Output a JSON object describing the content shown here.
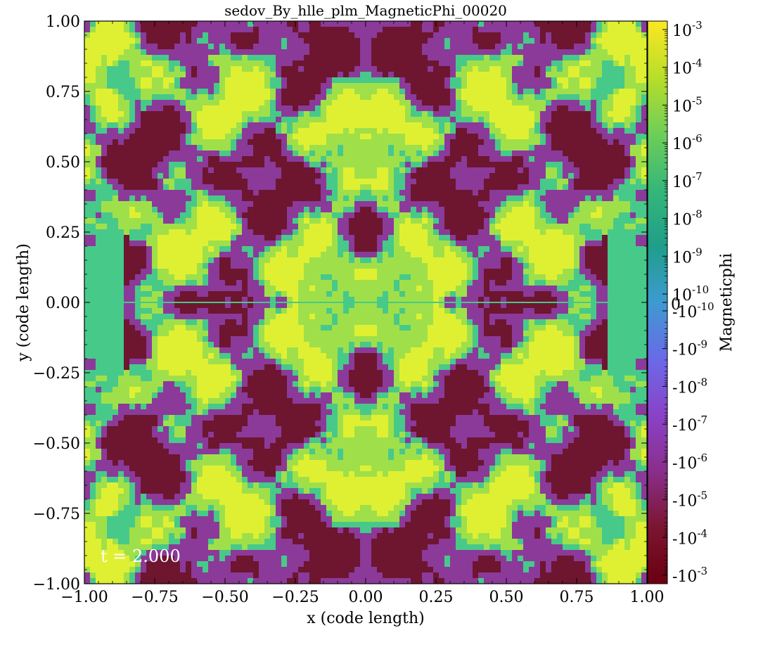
{
  "chart_data": {
    "type": "heatmap",
    "title": "sedov_By_hlle_plm_MagneticPhi_00020",
    "xlabel": "x  (code length)",
    "ylabel": "y  (code length)",
    "xlim": [
      -1.0,
      1.0
    ],
    "ylim": [
      -1.0,
      1.0
    ],
    "x_ticks": [
      "−1.00",
      "−0.75",
      "−0.50",
      "−0.25",
      "0.00",
      "0.25",
      "0.50",
      "0.75",
      "1.00"
    ],
    "y_ticks": [
      "1.00",
      "0.75",
      "0.50",
      "0.25",
      "0.00",
      "−0.25",
      "−0.50",
      "−0.75",
      "−1.00"
    ],
    "x_tick_values": [
      -1.0,
      -0.75,
      -0.5,
      -0.25,
      0.0,
      0.25,
      0.5,
      0.75,
      1.0
    ],
    "y_tick_values": [
      1.0,
      0.75,
      0.5,
      0.25,
      0.0,
      -0.25,
      -0.5,
      -0.75,
      -1.0
    ],
    "annotation": "t = 2.000",
    "colorbar": {
      "label": "Magneticphi",
      "scale": "symlog",
      "positive_ticks": [
        {
          "base": "10",
          "exp": "-3",
          "value": 0.001
        },
        {
          "base": "10",
          "exp": "-4",
          "value": 0.0001
        },
        {
          "base": "10",
          "exp": "-5",
          "value": 1e-05
        },
        {
          "base": "10",
          "exp": "-6",
          "value": 1e-06
        },
        {
          "base": "10",
          "exp": "-7",
          "value": 1e-07
        },
        {
          "base": "10",
          "exp": "-8",
          "value": 1e-08
        },
        {
          "base": "10",
          "exp": "-9",
          "value": 1e-09
        },
        {
          "base": "10",
          "exp": "-10",
          "value": 1e-10
        }
      ],
      "zero_tick": "0",
      "negative_ticks": [
        {
          "base": "-10",
          "exp": "-10",
          "value": -1e-10
        },
        {
          "base": "-10",
          "exp": "-9",
          "value": -1e-09
        },
        {
          "base": "-10",
          "exp": "-8",
          "value": -1e-08
        },
        {
          "base": "-10",
          "exp": "-7",
          "value": -1e-07
        },
        {
          "base": "-10",
          "exp": "-6",
          "value": -1e-06
        },
        {
          "base": "-10",
          "exp": "-5",
          "value": -1e-05
        },
        {
          "base": "-10",
          "exp": "-4",
          "value": -0.0001
        },
        {
          "base": "-10",
          "exp": "-3",
          "value": -0.001
        }
      ],
      "colors": [
        "#fbe723",
        "#b8de29",
        "#6ece58",
        "#35b779",
        "#1f9e89",
        "#3d9ad1",
        "#6a6ae8",
        "#8a42c8",
        "#8a2e8c",
        "#7b1530",
        "#6a0010"
      ]
    },
    "field_palette": {
      "background": "#7a2a7a",
      "purple": "#8b3a99",
      "maroon": "#6e1530",
      "green": "#9fe04a",
      "yellow": "#dff032",
      "teal": "#47c98a"
    }
  }
}
